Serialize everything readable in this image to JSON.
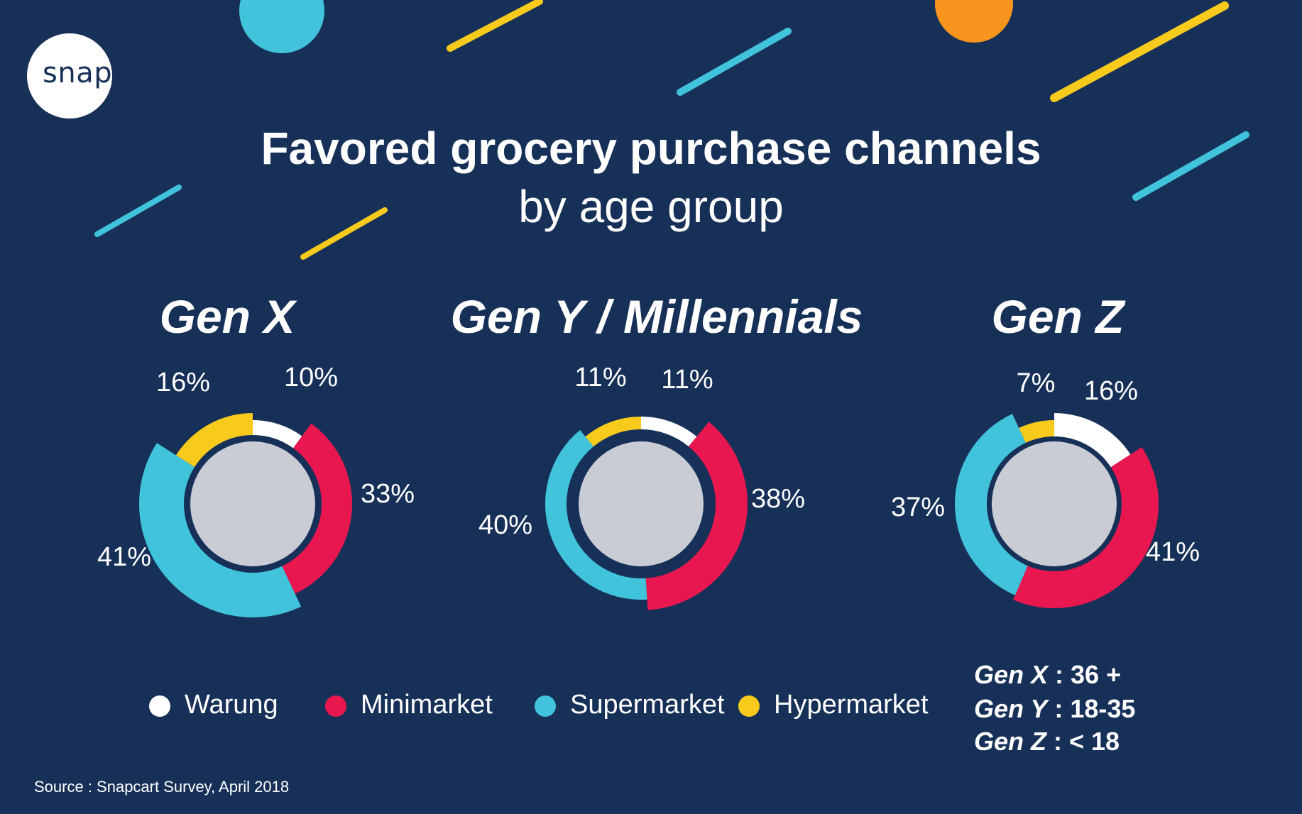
{
  "title": "Favored grocery purchase channels",
  "subtitle": "by age group",
  "logo": "snapcart",
  "source": "Source : Snapcart Survey, April 2018",
  "colors": {
    "background": "#173058",
    "Warung": "#ffffff",
    "Minimarket": "#e8174f",
    "Supermarket": "#41c3dc",
    "Hypermarket": "#f8ca1c",
    "accent_orange": "#f7941e"
  },
  "legend": [
    "Warung",
    "Minimarket",
    "Supermarket",
    "Hypermarket"
  ],
  "age_definitions": [
    {
      "gen": "Gen X",
      "value": " : 36 +"
    },
    {
      "gen": "Gen Y",
      "value": " : 18-35"
    },
    {
      "gen": "Gen Z",
      "value": " : < 18"
    }
  ],
  "chart_data": [
    {
      "type": "pie",
      "title": "Gen X",
      "categories": [
        "Warung",
        "Minimarket",
        "Supermarket",
        "Hypermarket"
      ],
      "values": [
        10,
        33,
        41,
        16
      ],
      "labels": [
        "10%",
        "33%",
        "41%",
        "16%"
      ]
    },
    {
      "type": "pie",
      "title": "Gen Y / Millennials",
      "categories": [
        "Warung",
        "Minimarket",
        "Supermarket",
        "Hypermarket"
      ],
      "values": [
        11,
        38,
        40,
        11
      ],
      "labels": [
        "11%",
        "38%",
        "40%",
        "11%"
      ]
    },
    {
      "type": "pie",
      "title": "Gen Z",
      "categories": [
        "Warung",
        "Minimarket",
        "Supermarket",
        "Hypermarket"
      ],
      "values": [
        16,
        41,
        37,
        7
      ],
      "labels": [
        "16%",
        "41%",
        "37%",
        "7%"
      ]
    }
  ]
}
